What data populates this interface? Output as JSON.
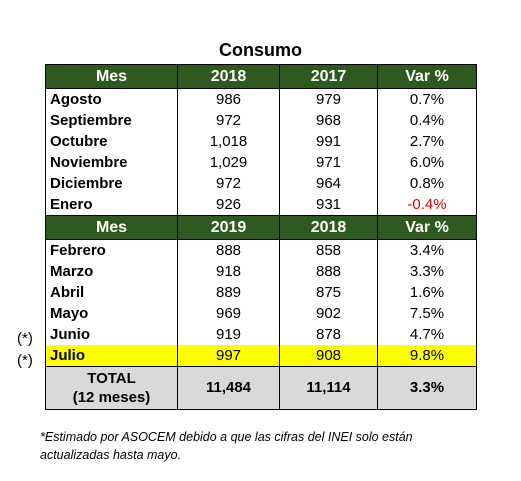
{
  "title": "Consumo",
  "section1": {
    "headers": [
      "Mes",
      "2018",
      "2017",
      "Var %"
    ],
    "rows": [
      {
        "mes": "Agosto",
        "a": "986",
        "b": "979",
        "var": "0.7%"
      },
      {
        "mes": "Septiembre",
        "a": "972",
        "b": "968",
        "var": "0.4%"
      },
      {
        "mes": "Octubre",
        "a": "1,018",
        "b": "991",
        "var": "2.7%"
      },
      {
        "mes": "Noviembre",
        "a": "1,029",
        "b": "971",
        "var": "6.0%"
      },
      {
        "mes": "Diciembre",
        "a": "972",
        "b": "964",
        "var": "0.8%"
      },
      {
        "mes": "Enero",
        "a": "926",
        "b": "931",
        "var": "-0.4%"
      }
    ]
  },
  "section2": {
    "headers": [
      "Mes",
      "2019",
      "2018",
      "Var %"
    ],
    "rows": [
      {
        "mes": "Febrero",
        "a": "888",
        "b": "858",
        "var": "3.4%"
      },
      {
        "mes": "Marzo",
        "a": "918",
        "b": "888",
        "var": "3.3%"
      },
      {
        "mes": "Abril",
        "a": "889",
        "b": "875",
        "var": "1.6%"
      },
      {
        "mes": "Mayo",
        "a": "969",
        "b": "902",
        "var": "7.5%"
      },
      {
        "mes": "Junio",
        "a": "919",
        "b": "878",
        "var": "4.7%",
        "marker": "(*)"
      },
      {
        "mes": "Julio",
        "a": "997",
        "b": "908",
        "var": "9.8%",
        "marker": "(*)"
      }
    ]
  },
  "total": {
    "line1": "TOTAL",
    "line2": "(12 meses)",
    "a": "11,484",
    "b": "11,114",
    "var": "3.3%"
  },
  "footnote": {
    "line1": "*Estimado por ASOCEM debido a que las cifras del INEI solo están",
    "line2": "actualizadas hasta mayo."
  },
  "colors": {
    "header_bg": "#2e5a1f",
    "highlight": "#ffff00",
    "total_bg": "#d9d9d9",
    "negative": "#e00000"
  }
}
